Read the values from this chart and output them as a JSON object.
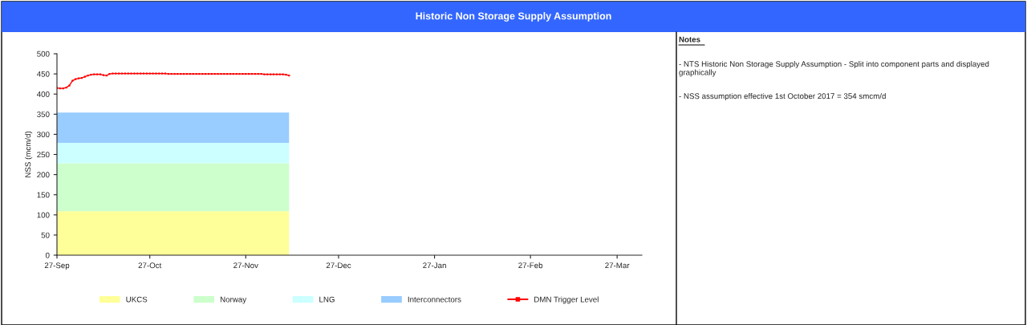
{
  "chart_data": {
    "type": "area",
    "title": "Historic Non Storage Supply Assumption",
    "ylabel": "NSS (mcm/d)",
    "stacked": true,
    "x": [
      "2017-09-27",
      "2017-12-11"
    ],
    "series": [
      {
        "name": "UKCS",
        "color": "#ffff99",
        "values": [
          109,
          109
        ]
      },
      {
        "name": "Norway",
        "color": "#ccffcc",
        "values": [
          119,
          119
        ]
      },
      {
        "name": "LNG",
        "color": "#ccffff",
        "values": [
          51,
          51
        ]
      },
      {
        "name": "Interconnectors",
        "color": "#99ccff",
        "values": [
          75,
          75
        ]
      },
      {
        "name": "DMN Trigger Level",
        "type": "line",
        "color": "#ff0000",
        "marker": "square",
        "line_style": "solid",
        "x": [
          "2017-09-27",
          "2017-09-28",
          "2017-09-29",
          "2017-09-30",
          "2017-10-01",
          "2017-10-02",
          "2017-10-03",
          "2017-10-04",
          "2017-10-05",
          "2017-10-06",
          "2017-10-07",
          "2017-10-08",
          "2017-10-09",
          "2017-10-10",
          "2017-10-11",
          "2017-10-12",
          "2017-10-13",
          "2017-10-14",
          "2017-10-15",
          "2017-10-16",
          "2017-10-17",
          "2017-10-18",
          "2017-10-19",
          "2017-10-20",
          "2017-10-21",
          "2017-10-22",
          "2017-10-23",
          "2017-10-24",
          "2017-10-25",
          "2017-10-26",
          "2017-10-27",
          "2017-10-28",
          "2017-10-29",
          "2017-10-30",
          "2017-10-31",
          "2017-11-01",
          "2017-11-02",
          "2017-11-03",
          "2017-11-04",
          "2017-11-05",
          "2017-11-06",
          "2017-11-07",
          "2017-11-08",
          "2017-11-09",
          "2017-11-10",
          "2017-11-11",
          "2017-11-12",
          "2017-11-13",
          "2017-11-14",
          "2017-11-15",
          "2017-11-16",
          "2017-11-17",
          "2017-11-18",
          "2017-11-19",
          "2017-11-20",
          "2017-11-21",
          "2017-11-22",
          "2017-11-23",
          "2017-11-24",
          "2017-11-25",
          "2017-11-26",
          "2017-11-27",
          "2017-11-28",
          "2017-11-29",
          "2017-11-30",
          "2017-12-01",
          "2017-12-02",
          "2017-12-03",
          "2017-12-04",
          "2017-12-05",
          "2017-12-06",
          "2017-12-07",
          "2017-12-08",
          "2017-12-09",
          "2017-12-10",
          "2017-12-11"
        ],
        "values": [
          415,
          414,
          414,
          416,
          421,
          433,
          437,
          439,
          440,
          443,
          446,
          448,
          449,
          449,
          449,
          447,
          446,
          450,
          451,
          451,
          451,
          451,
          451,
          451,
          451,
          451,
          451,
          451,
          451,
          451,
          451,
          451,
          451,
          451,
          451,
          451,
          450,
          450,
          450,
          450,
          450,
          450,
          450,
          450,
          450,
          450,
          450,
          450,
          450,
          450,
          450,
          450,
          450,
          450,
          450,
          450,
          450,
          450,
          450,
          450,
          450,
          450,
          450,
          450,
          450,
          450,
          450,
          449,
          449,
          449,
          449,
          449,
          449,
          449,
          448,
          446
        ]
      }
    ],
    "xlim": [
      "2017-09-27",
      "2018-04-04"
    ],
    "xticks": [
      {
        "value": "2017-09-27",
        "label": "27-Sep"
      },
      {
        "value": "2017-10-27",
        "label": "27-Oct"
      },
      {
        "value": "2017-11-27",
        "label": "27-Nov"
      },
      {
        "value": "2017-12-27",
        "label": "27-Dec"
      },
      {
        "value": "2018-01-27",
        "label": "27-Jan"
      },
      {
        "value": "2018-02-27",
        "label": "27-Feb"
      },
      {
        "value": "2018-03-27",
        "label": "27-Mar"
      }
    ],
    "ylim": [
      0,
      500
    ],
    "yticks": [
      0,
      50,
      100,
      150,
      200,
      250,
      300,
      350,
      400,
      450,
      500
    ],
    "grid": false,
    "legend": "bottom",
    "annotations": [
      "Notes",
      "- NTS Historic Non Storage Supply Assumption - Split into component parts and displayed graphically",
      "- NSS assumption effective 1st October 2017 = 354 smcm/d"
    ]
  }
}
